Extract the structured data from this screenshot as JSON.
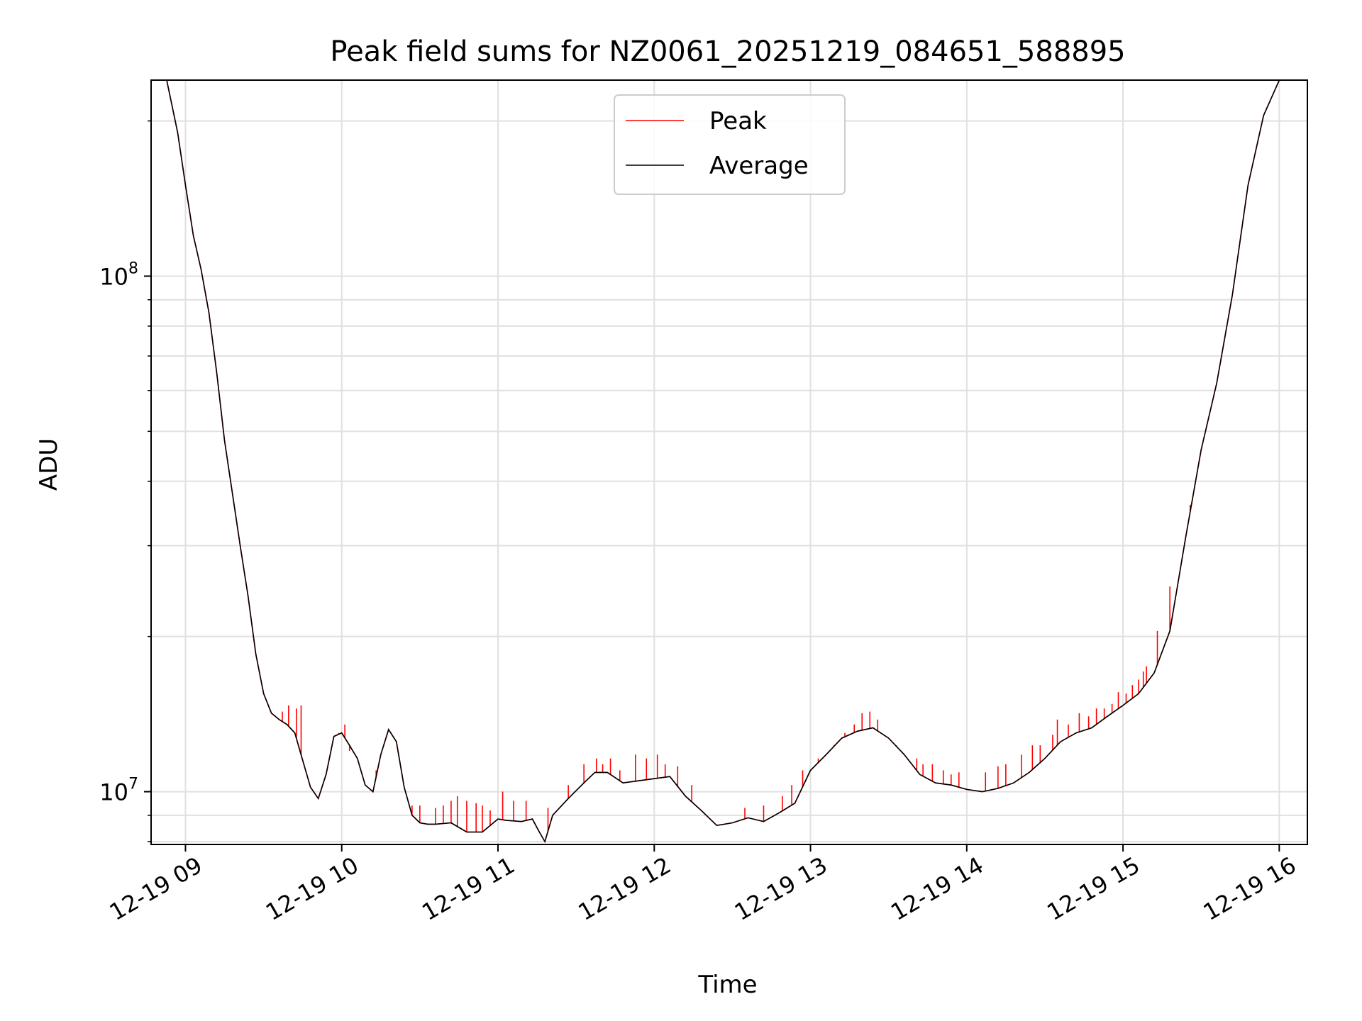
{
  "chart_data": {
    "type": "line",
    "title": "Peak field sums for NZ0061_20251219_084651_588895",
    "xlabel": "Time",
    "ylabel": "ADU",
    "yscale": "log",
    "xlim": [
      8.78,
      16.18
    ],
    "ylim": [
      7900000,
      240000000
    ],
    "x_ticks": [
      9,
      10,
      11,
      12,
      13,
      14,
      15,
      16
    ],
    "x_tick_labels": [
      "12-19 09",
      "12-19 10",
      "12-19 11",
      "12-19 12",
      "12-19 13",
      "12-19 14",
      "12-19 15",
      "12-19 16"
    ],
    "y_ticks": [
      10000000,
      100000000
    ],
    "y_tick_base": "10",
    "y_tick_exponents": [
      "7",
      "8"
    ],
    "grid": true,
    "legend": {
      "position": "top-center",
      "entries": [
        "Peak",
        "Average"
      ]
    },
    "colors": {
      "peak": "#ff0000",
      "average": "#000000",
      "grid": "#e0e0e0"
    },
    "average_series": {
      "name": "Average",
      "x": [
        8.78,
        8.88,
        8.95,
        9.0,
        9.05,
        9.1,
        9.15,
        9.2,
        9.25,
        9.3,
        9.35,
        9.4,
        9.45,
        9.5,
        9.55,
        9.6,
        9.65,
        9.7,
        9.75,
        9.8,
        9.85,
        9.9,
        9.95,
        10.0,
        10.05,
        10.1,
        10.15,
        10.2,
        10.25,
        10.3,
        10.35,
        10.4,
        10.45,
        10.5,
        10.55,
        10.6,
        10.7,
        10.8,
        10.9,
        11.0,
        11.05,
        11.15,
        11.22,
        11.26,
        11.3,
        11.35,
        11.45,
        11.55,
        11.62,
        11.7,
        11.8,
        11.9,
        12.0,
        12.1,
        12.2,
        12.3,
        12.4,
        12.5,
        12.6,
        12.7,
        12.8,
        12.9,
        13.0,
        13.1,
        13.2,
        13.3,
        13.4,
        13.5,
        13.6,
        13.7,
        13.8,
        13.9,
        14.0,
        14.1,
        14.2,
        14.3,
        14.4,
        14.5,
        14.6,
        14.7,
        14.8,
        14.9,
        15.0,
        15.1,
        15.2,
        15.3,
        15.4,
        15.5,
        15.6,
        15.7,
        15.8,
        15.9,
        16.0,
        16.05,
        16.18
      ],
      "values": [
        240000000,
        240000000,
        190000000,
        150000000,
        120000000,
        103000000,
        85000000,
        65000000,
        48000000,
        38000000,
        30000000,
        24000000,
        18500000,
        15500000,
        14200000,
        13800000,
        13500000,
        13000000,
        11500000,
        10200000,
        9700000,
        10800000,
        12800000,
        13000000,
        12300000,
        11600000,
        10300000,
        10000000,
        11800000,
        13200000,
        12500000,
        10200000,
        9000000,
        8700000,
        8650000,
        8650000,
        8700000,
        8350000,
        8350000,
        8850000,
        8800000,
        8750000,
        8850000,
        8400000,
        8000000,
        9000000,
        9700000,
        10400000,
        10900000,
        10900000,
        10400000,
        10500000,
        10600000,
        10700000,
        9800000,
        9200000,
        8600000,
        8700000,
        8900000,
        8750000,
        9100000,
        9500000,
        11000000,
        11800000,
        12700000,
        13100000,
        13300000,
        12700000,
        11800000,
        10800000,
        10400000,
        10300000,
        10100000,
        10000000,
        10150000,
        10400000,
        10900000,
        11600000,
        12500000,
        13000000,
        13300000,
        14000000,
        14700000,
        15500000,
        17000000,
        20500000,
        31000000,
        46000000,
        62000000,
        92000000,
        150000000,
        205000000,
        240000000,
        240000000,
        240000000
      ]
    },
    "peak_spikes": {
      "name": "Peak",
      "x": [
        9.62,
        9.66,
        9.71,
        9.74,
        9.98,
        10.02,
        10.05,
        10.22,
        10.45,
        10.5,
        10.6,
        10.65,
        10.7,
        10.74,
        10.8,
        10.86,
        10.9,
        10.95,
        11.03,
        11.1,
        11.18,
        11.32,
        11.45,
        11.55,
        11.63,
        11.67,
        11.72,
        11.78,
        11.88,
        11.95,
        12.02,
        12.07,
        12.15,
        12.24,
        12.58,
        12.7,
        12.82,
        12.88,
        12.95,
        13.05,
        13.15,
        13.22,
        13.28,
        13.33,
        13.38,
        13.43,
        13.55,
        13.62,
        13.68,
        13.72,
        13.78,
        13.85,
        13.9,
        13.95,
        14.12,
        14.2,
        14.25,
        14.35,
        14.42,
        14.47,
        14.55,
        14.58,
        14.65,
        14.72,
        14.78,
        14.83,
        14.88,
        14.93,
        14.97,
        15.02,
        15.06,
        15.1,
        15.13,
        15.15,
        15.22,
        15.3,
        15.43
      ],
      "values": [
        14300000,
        14700000,
        14500000,
        14700000,
        13000000,
        13500000,
        12000000,
        11000000,
        9400000,
        9400000,
        9300000,
        9400000,
        9600000,
        9800000,
        9600000,
        9500000,
        9400000,
        9200000,
        10000000,
        9600000,
        9600000,
        9300000,
        10300000,
        11300000,
        11600000,
        11300000,
        11600000,
        11000000,
        11800000,
        11600000,
        11800000,
        11300000,
        11200000,
        10300000,
        9300000,
        9400000,
        9800000,
        10300000,
        11000000,
        11600000,
        12300000,
        13000000,
        13500000,
        14200000,
        14300000,
        13800000,
        12300000,
        11600000,
        11600000,
        11300000,
        11300000,
        11000000,
        10800000,
        10900000,
        10900000,
        11200000,
        11300000,
        11800000,
        12300000,
        12300000,
        12900000,
        13800000,
        13500000,
        14200000,
        14000000,
        14500000,
        14500000,
        14800000,
        15600000,
        15500000,
        16100000,
        16500000,
        17100000,
        17500000,
        20500000,
        25000000,
        36000000
      ]
    }
  }
}
